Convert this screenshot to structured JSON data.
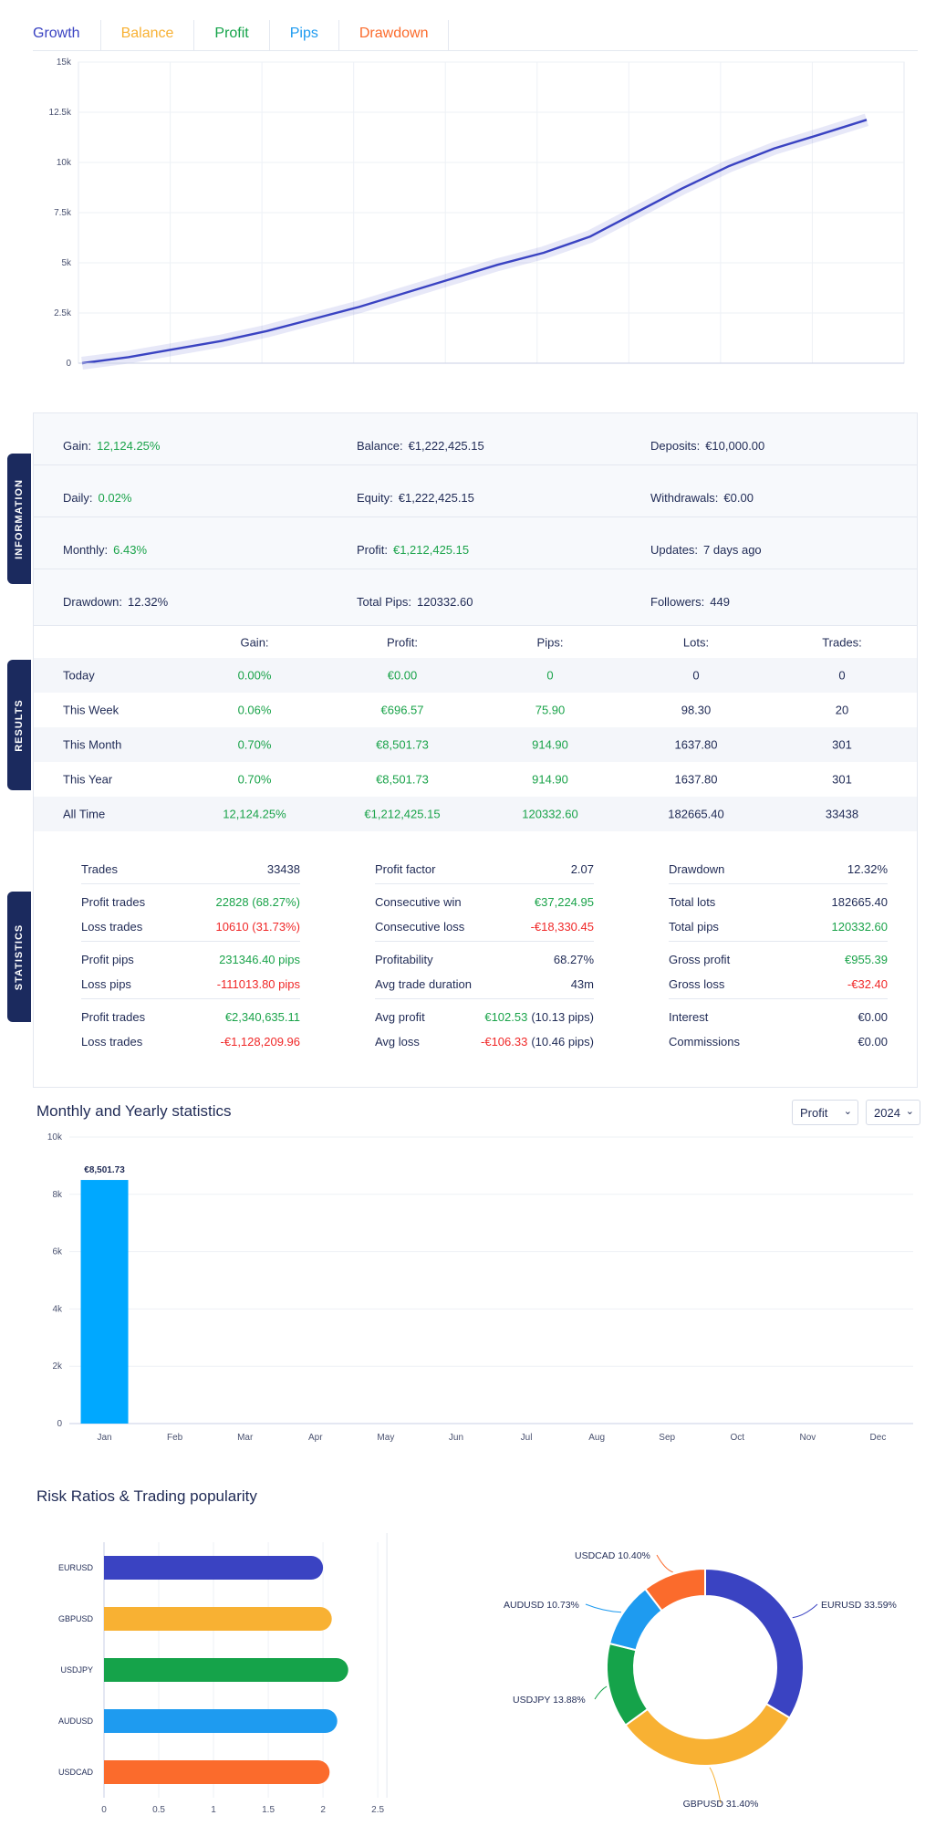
{
  "tabs": [
    {
      "label": "Growth",
      "color": "#3a43c2"
    },
    {
      "label": "Balance",
      "color": "#f8b133"
    },
    {
      "label": "Profit",
      "color": "#15a34a"
    },
    {
      "label": "Pips",
      "color": "#1e9bf0"
    },
    {
      "label": "Drawdown",
      "color": "#fb6b2c"
    }
  ],
  "growth": {
    "chart_data": {
      "type": "line",
      "y_ticks": [
        "0",
        "2.5k",
        "5k",
        "7.5k",
        "10k",
        "12.5k",
        "15k"
      ],
      "ylim": [
        0,
        15000
      ],
      "color": "#3a43c2",
      "values": [
        0,
        300,
        700,
        1100,
        1600,
        2200,
        2800,
        3500,
        4200,
        4900,
        5500,
        6300,
        7500,
        8700,
        9800,
        10700,
        11400,
        12124
      ]
    }
  },
  "info": {
    "rows": [
      [
        {
          "label": "Gain:",
          "value": "12,124.25%",
          "tone": "green"
        },
        {
          "label": "Balance:",
          "value": "€1,222,425.15",
          "tone": ""
        },
        {
          "label": "Deposits:",
          "value": "€10,000.00",
          "tone": ""
        }
      ],
      [
        {
          "label": "Daily:",
          "value": "0.02%",
          "tone": "green"
        },
        {
          "label": "Equity:",
          "value": "€1,222,425.15",
          "tone": ""
        },
        {
          "label": "Withdrawals:",
          "value": "€0.00",
          "tone": ""
        }
      ],
      [
        {
          "label": "Monthly:",
          "value": "6.43%",
          "tone": "green"
        },
        {
          "label": "Profit:",
          "value": "€1,212,425.15",
          "tone": "green"
        },
        {
          "label": "Updates:",
          "value": "7 days ago",
          "tone": ""
        }
      ],
      [
        {
          "label": "Drawdown:",
          "value": "12.32%",
          "tone": ""
        },
        {
          "label": "Total Pips:",
          "value": "120332.60",
          "tone": ""
        },
        {
          "label": "Followers:",
          "value": "449",
          "tone": ""
        }
      ]
    ],
    "side_labels": {
      "information": "INFORMATION",
      "results": "RESULTS",
      "statistics": "STATISTICS"
    }
  },
  "results": {
    "headers": [
      "Gain:",
      "Profit:",
      "Pips:",
      "Lots:",
      "Trades:"
    ],
    "rows": [
      {
        "period": "Today",
        "gain": "0.00%",
        "profit": "€0.00",
        "pips": "0",
        "lots": "0",
        "trades": "0"
      },
      {
        "period": "This Week",
        "gain": "0.06%",
        "profit": "€696.57",
        "pips": "75.90",
        "lots": "98.30",
        "trades": "20"
      },
      {
        "period": "This Month",
        "gain": "0.70%",
        "profit": "€8,501.73",
        "pips": "914.90",
        "lots": "1637.80",
        "trades": "301"
      },
      {
        "period": "This Year",
        "gain": "0.70%",
        "profit": "€8,501.73",
        "pips": "914.90",
        "lots": "1637.80",
        "trades": "301"
      },
      {
        "period": "All Time",
        "gain": "12,124.25%",
        "profit": "€1,212,425.15",
        "pips": "120332.60",
        "lots": "182665.40",
        "trades": "33438"
      }
    ]
  },
  "statistics": {
    "columns": [
      [
        [
          {
            "k": "Trades",
            "v": "33438",
            "tone": ""
          }
        ],
        [
          {
            "k": "Profit trades",
            "v": "22828 (68.27%)",
            "tone": "green"
          },
          {
            "k": "Loss trades",
            "v": "10610 (31.73%)",
            "tone": "red"
          }
        ],
        [
          {
            "k": "Profit pips",
            "v": "231346.40 pips",
            "tone": "green"
          },
          {
            "k": "Loss pips",
            "v": "-111013.80 pips",
            "tone": "red"
          }
        ],
        [
          {
            "k": "Profit trades",
            "v": "€2,340,635.11",
            "tone": "green"
          },
          {
            "k": "Loss trades",
            "v": "-€1,128,209.96",
            "tone": "red"
          }
        ]
      ],
      [
        [
          {
            "k": "Profit factor",
            "v": "2.07",
            "tone": ""
          }
        ],
        [
          {
            "k": "Consecutive win",
            "v": "€37,224.95",
            "tone": "green"
          },
          {
            "k": "Consecutive loss",
            "v": "-€18,330.45",
            "tone": "red"
          }
        ],
        [
          {
            "k": "Profitability",
            "v": "68.27%",
            "tone": ""
          },
          {
            "k": "Avg trade duration",
            "v": "43m",
            "tone": ""
          }
        ],
        [
          {
            "k": "Avg profit",
            "v": "€102.53",
            "extra": "(10.13 pips)",
            "tone": "green"
          },
          {
            "k": "Avg loss",
            "v": "-€106.33",
            "extra": "(10.46 pips)",
            "tone": "red"
          }
        ]
      ],
      [
        [
          {
            "k": "Drawdown",
            "v": "12.32%",
            "tone": ""
          }
        ],
        [
          {
            "k": "Total lots",
            "v": "182665.40",
            "tone": ""
          },
          {
            "k": "Total pips",
            "v": "120332.60",
            "tone": "green"
          }
        ],
        [
          {
            "k": "Gross profit",
            "v": "€955.39",
            "tone": "green"
          },
          {
            "k": "Gross loss",
            "v": "-€32.40",
            "tone": "red"
          }
        ],
        [
          {
            "k": "Interest",
            "v": "€0.00",
            "tone": ""
          },
          {
            "k": "Commissions",
            "v": "€0.00",
            "tone": ""
          }
        ]
      ]
    ]
  },
  "monthly": {
    "title": "Monthly and Yearly statistics",
    "metric_select": "Profit",
    "year_select": "2024",
    "chart_data": {
      "type": "bar",
      "categories": [
        "Jan",
        "Feb",
        "Mar",
        "Apr",
        "May",
        "Jun",
        "Jul",
        "Aug",
        "Sep",
        "Oct",
        "Nov",
        "Dec"
      ],
      "values": [
        8501.73,
        0,
        0,
        0,
        0,
        0,
        0,
        0,
        0,
        0,
        0,
        0
      ],
      "data_labels": [
        "€8,501.73"
      ],
      "y_ticks": [
        "0",
        "2k",
        "4k",
        "6k",
        "8k",
        "10k"
      ],
      "ylim": [
        0,
        10000
      ],
      "color": "#00a8ff"
    }
  },
  "risk": {
    "title": "Risk Ratios & Trading popularity",
    "bar_chart": {
      "type": "bar",
      "orientation": "horizontal",
      "categories": [
        "EURUSD",
        "GBPUSD",
        "USDJPY",
        "AUDUSD",
        "USDCAD"
      ],
      "values": [
        2.0,
        2.08,
        2.23,
        2.13,
        2.06
      ],
      "colors": [
        "#3a43c2",
        "#f8b133",
        "#15a34a",
        "#1e9bf0",
        "#fb6b2c"
      ],
      "x_ticks": [
        "0",
        "0.5",
        "1",
        "1.5",
        "2",
        "2.5"
      ],
      "xlim": [
        0,
        2.5
      ]
    },
    "pie_chart": {
      "type": "pie",
      "slices": [
        {
          "label": "EURUSD 33.59%",
          "value": 33.59,
          "color": "#3a43c2"
        },
        {
          "label": "GBPUSD 31.40%",
          "value": 31.4,
          "color": "#f8b133"
        },
        {
          "label": "USDJPY 13.88%",
          "value": 13.88,
          "color": "#15a34a"
        },
        {
          "label": "AUDUSD 10.73%",
          "value": 10.73,
          "color": "#1e9bf0"
        },
        {
          "label": "USDCAD 10.40%",
          "value": 10.4,
          "color": "#fb6b2c"
        }
      ]
    }
  }
}
